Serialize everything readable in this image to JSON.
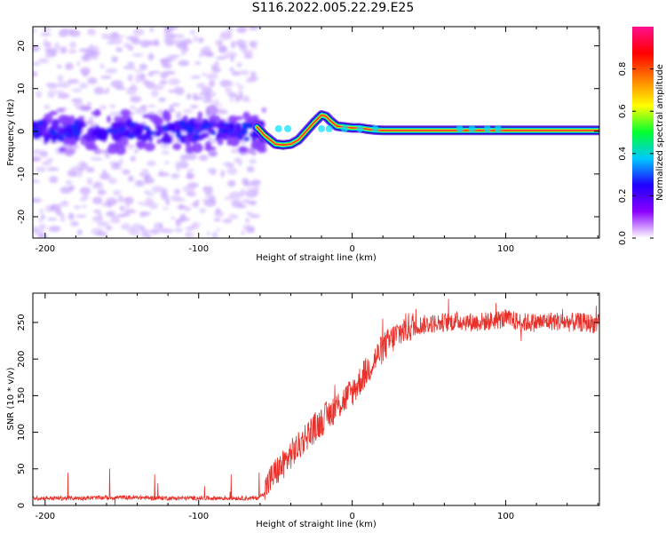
{
  "figure": {
    "title": "S116.2022.005.22.29.E25"
  },
  "chart_data": [
    {
      "type": "heatmap",
      "xlabel": "Height of straight line (km)",
      "ylabel": "Frequency (Hz)",
      "xlim": [
        -208,
        161
      ],
      "ylim": [
        -25,
        24.5
      ],
      "x_ticks": [
        -200,
        -100,
        0,
        100
      ],
      "y_ticks": [
        20,
        10,
        0,
        -10,
        -20
      ],
      "grid": false,
      "noise_region_x": [
        -208,
        -62
      ],
      "signal_ridge": {
        "x": [
          -62,
          -57,
          -50,
          -45,
          -40,
          -35,
          -30,
          -25,
          -20,
          -17,
          -14,
          -10,
          -5,
          0,
          5,
          10,
          15,
          20,
          40,
          60,
          80,
          100,
          120,
          140,
          161
        ],
        "freq": [
          1,
          -1,
          -3,
          -3.2,
          -3,
          -2,
          0,
          2,
          3.8,
          3.5,
          2.4,
          1.2,
          1,
          0.8,
          0.8,
          0.5,
          0.3,
          0.2,
          0.2,
          0.2,
          0.2,
          0.2,
          0.2,
          0.2,
          0.2
        ]
      },
      "colorbar": {
        "label": "Normalized spectral amplitude",
        "range": [
          0,
          1
        ],
        "ticks": [
          0.0,
          0.2,
          0.4,
          0.6,
          0.8
        ],
        "tick_labels": [
          "0.0",
          "0.2",
          "0.4",
          "0.6",
          "0.8"
        ],
        "colormap": [
          "#ffffff",
          "#8a00ff",
          "#2000ff",
          "#00c8ff",
          "#00ff30",
          "#ffff00",
          "#ff8000",
          "#ff0000",
          "#ff1090"
        ]
      }
    },
    {
      "type": "line",
      "xlabel": "Height of straight line (km)",
      "ylabel": "SNR (10 * v/v)",
      "xlim": [
        -208,
        161
      ],
      "ylim": [
        0,
        290
      ],
      "x_ticks": [
        -200,
        -100,
        0,
        100
      ],
      "y_ticks": [
        0,
        50,
        100,
        150,
        200,
        250
      ],
      "grid": false,
      "series": [
        {
          "color": "#e8302a",
          "x": [
            -208,
            -180,
            -150,
            -120,
            -90,
            -70,
            -62,
            -58,
            -55,
            -50,
            -45,
            -40,
            -35,
            -30,
            -25,
            -20,
            -15,
            -10,
            -5,
            0,
            5,
            10,
            15,
            20,
            25,
            30,
            35,
            40,
            50,
            60,
            70,
            80,
            90,
            100,
            110,
            120,
            130,
            140,
            150,
            161
          ],
          "values": [
            10,
            10,
            11,
            10,
            10,
            10,
            10,
            15,
            30,
            45,
            55,
            70,
            80,
            95,
            105,
            115,
            125,
            135,
            145,
            155,
            170,
            185,
            200,
            215,
            225,
            235,
            242,
            245,
            248,
            250,
            252,
            250,
            252,
            255,
            250,
            250,
            252,
            250,
            250,
            248
          ]
        }
      ]
    }
  ]
}
